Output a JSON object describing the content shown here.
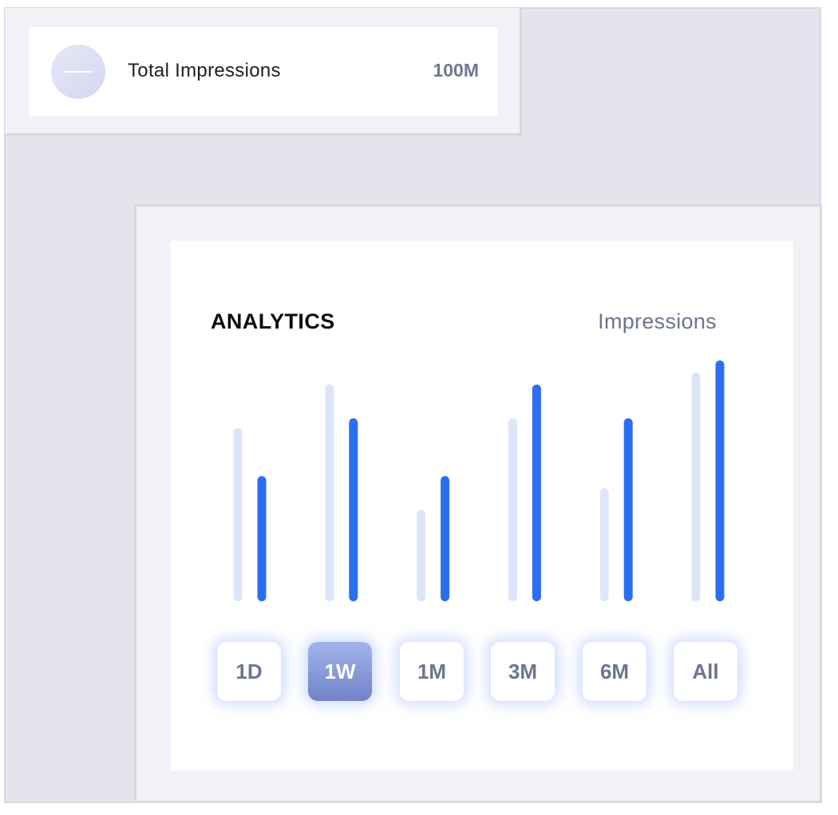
{
  "stat": {
    "label": "Total Impressions",
    "value": "100M",
    "icon": "minus-icon"
  },
  "chart": {
    "title": "ANALYTICS",
    "series_label": "Impressions"
  },
  "range": {
    "buttons": [
      "1D",
      "1W",
      "1M",
      "3M",
      "6M",
      "All"
    ],
    "selected": "1W"
  },
  "colors": {
    "primary_bar": "#2b6ff0",
    "secondary_bar": "#dde6f8",
    "active_button": "#7d91d3",
    "muted_text": "#6c7590"
  },
  "chart_data": {
    "type": "bar",
    "categories": [
      "1D",
      "1W",
      "1M",
      "3M",
      "6M",
      "All"
    ],
    "series": [
      {
        "values": [
          72,
          90,
          38,
          76,
          47,
          95
        ]
      },
      {
        "values": [
          52,
          76,
          52,
          90,
          76,
          100
        ]
      }
    ],
    "ylim": [
      0,
      100
    ],
    "grid": false,
    "legend": "none",
    "tick_labels": false
  }
}
